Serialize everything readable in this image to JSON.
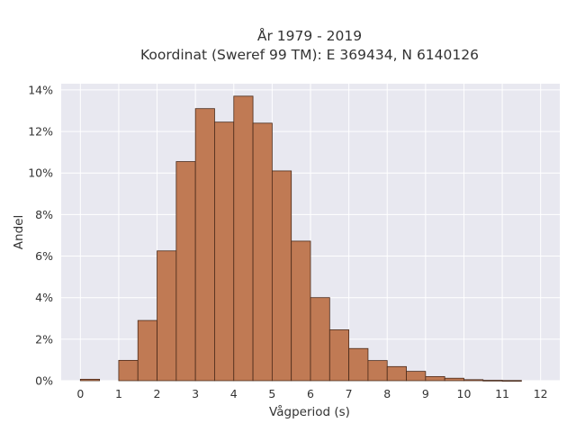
{
  "chart_data": {
    "type": "bar",
    "title_lines": [
      "År 1979 - 2019",
      "Koordinat (Sweref 99 TM): E 369434, N 6140126"
    ],
    "xlabel": "Vågperiod (s)",
    "ylabel": "Andel",
    "bin_width": 0.5,
    "bins": [
      {
        "start": 0.0,
        "value": 0.07
      },
      {
        "start": 0.5,
        "value": 0.0
      },
      {
        "start": 1.0,
        "value": 0.98
      },
      {
        "start": 1.5,
        "value": 2.9
      },
      {
        "start": 2.0,
        "value": 6.25
      },
      {
        "start": 2.5,
        "value": 10.55
      },
      {
        "start": 3.0,
        "value": 13.1
      },
      {
        "start": 3.5,
        "value": 12.45
      },
      {
        "start": 4.0,
        "value": 13.7
      },
      {
        "start": 4.5,
        "value": 12.4
      },
      {
        "start": 5.0,
        "value": 10.1
      },
      {
        "start": 5.5,
        "value": 6.72
      },
      {
        "start": 6.0,
        "value": 4.0
      },
      {
        "start": 6.5,
        "value": 2.45
      },
      {
        "start": 7.0,
        "value": 1.55
      },
      {
        "start": 7.5,
        "value": 0.97
      },
      {
        "start": 8.0,
        "value": 0.68
      },
      {
        "start": 8.5,
        "value": 0.45
      },
      {
        "start": 9.0,
        "value": 0.2
      },
      {
        "start": 9.5,
        "value": 0.12
      },
      {
        "start": 10.0,
        "value": 0.05
      },
      {
        "start": 10.5,
        "value": 0.02
      },
      {
        "start": 11.0,
        "value": 0.01
      }
    ],
    "xlim": [
      -0.5,
      12.5
    ],
    "ylim": [
      0,
      14.3
    ],
    "x_ticks": [
      "0",
      "1",
      "2",
      "3",
      "4",
      "5",
      "6",
      "7",
      "8",
      "9",
      "10",
      "11",
      "12"
    ],
    "y_ticks": [
      "0%",
      "2%",
      "4%",
      "6%",
      "8%",
      "10%",
      "12%",
      "14%"
    ],
    "grid": true,
    "colors": {
      "bar_fill": "#C07A54",
      "bar_stroke": "#4A2A1A",
      "plot_bg": "#E8E8F0",
      "grid": "#FFFFFF"
    }
  }
}
